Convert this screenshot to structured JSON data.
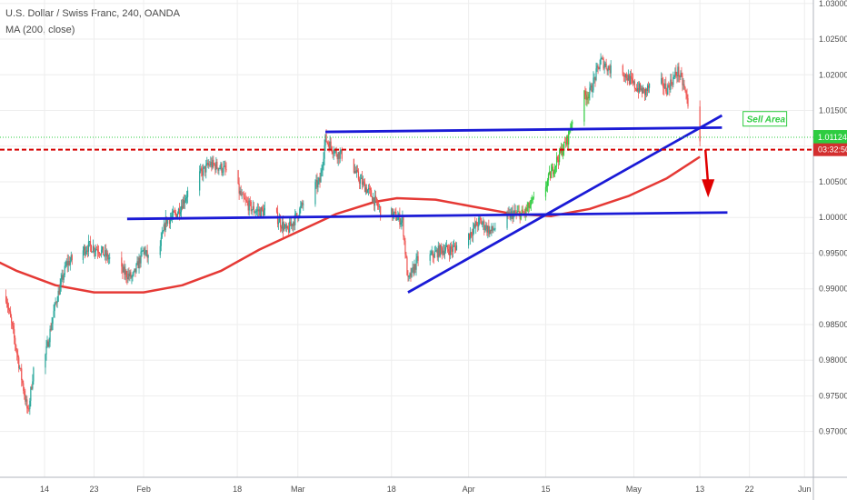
{
  "legend": {
    "title": "U.S. Dollar / Swiss Franc, 240, OANDA",
    "indicator": "MA (200, close)"
  },
  "price_tag": {
    "value": "1.01124",
    "countdown": "03:32:50"
  },
  "colors": {
    "up": "#26a69a",
    "up_bright": "#2ecc40",
    "down": "#ef5350",
    "ma": "#e53935",
    "trendline": "#1a1ad6",
    "price_line": "#2ecc40",
    "level_line": "#d50000",
    "arrow": "#e00000",
    "grid": "#eeeeee",
    "axis_text": "#4a4a4a",
    "countdown_bg": "#d32f2f"
  },
  "chart_data": {
    "type": "candlestick",
    "symbol": "USD/CHF",
    "timeframe": "240",
    "x_ticks": [
      "14",
      "23",
      "Feb",
      "18",
      "Mar",
      "18",
      "Apr",
      "15",
      "May",
      "13",
      "22",
      "Jun"
    ],
    "y_ticks": [
      "1.03000",
      "1.02500",
      "1.02000",
      "1.01500",
      "1.01000",
      "1.00500",
      "1.00000",
      "0.99500",
      "0.99000",
      "0.98500",
      "0.98000",
      "0.97500",
      "0.97000"
    ],
    "ylim": [
      0.9655,
      1.0301
    ],
    "price_path": [
      [
        "Jan 07",
        0.989
      ],
      [
        "Jan 09",
        0.981
      ],
      [
        "Jan 11",
        0.9725
      ],
      [
        "Jan 13",
        0.985
      ],
      [
        "Jan 14",
        0.98
      ],
      [
        "Jan 16",
        0.988
      ],
      [
        "Jan 18",
        0.9935
      ],
      [
        "Jan 22",
        0.996
      ],
      [
        "Jan 24",
        0.9955
      ],
      [
        "Jan 26",
        0.994
      ],
      [
        "Jan 28",
        0.9925
      ],
      [
        "Jan 30",
        0.9915
      ],
      [
        "Feb 01",
        0.9955
      ],
      [
        "Feb 03",
        0.9925
      ],
      [
        "Feb 05",
        0.9995
      ],
      [
        "Feb 07",
        1.0005
      ],
      [
        "Feb 10",
        1.005
      ],
      [
        "Feb 13",
        1.0075
      ],
      [
        "Feb 15",
        1.007
      ],
      [
        "Feb 17",
        1.006
      ],
      [
        "Feb 19",
        1.0025
      ],
      [
        "Feb 21",
        1.001
      ],
      [
        "Feb 23",
        1.0008
      ],
      [
        "Feb 25",
        1.0002
      ],
      [
        "Feb 27",
        0.998
      ],
      [
        "Mar 01",
        1.0005
      ],
      [
        "Mar 03",
        1.0035
      ],
      [
        "Mar 05",
        1.005
      ],
      [
        "Mar 06",
        1.011
      ],
      [
        "Mar 08",
        1.009
      ],
      [
        "Mar 10",
        1.0085
      ],
      [
        "Mar 12",
        1.0055
      ],
      [
        "Mar 14",
        1.0035
      ],
      [
        "Mar 16",
        1.001
      ],
      [
        "Mar 18",
        1.0005
      ],
      [
        "Mar 20",
        0.9995
      ],
      [
        "Mar 21",
        0.991
      ],
      [
        "Mar 23",
        0.9945
      ],
      [
        "Mar 25",
        0.9945
      ],
      [
        "Mar 27",
        0.9955
      ],
      [
        "Mar 29",
        0.9955
      ],
      [
        "Apr 01",
        0.9975
      ],
      [
        "Apr 03",
        0.9995
      ],
      [
        "Apr 05",
        0.998
      ],
      [
        "Apr 07",
        0.9995
      ],
      [
        "Apr 09",
        1.0005
      ],
      [
        "Apr 11",
        1.0005
      ],
      [
        "Apr 13",
        1.0025
      ],
      [
        "Apr 15",
        1.0045
      ],
      [
        "Apr 17",
        1.008
      ],
      [
        "Apr 19",
        1.011
      ],
      [
        "Apr 20",
        1.0145
      ],
      [
        "Apr 21",
        1.0165
      ],
      [
        "Apr 23",
        1.0175
      ],
      [
        "Apr 25",
        1.022
      ],
      [
        "Apr 27",
        1.0205
      ],
      [
        "Apr 29",
        1.0205
      ],
      [
        "May 01",
        1.0185
      ],
      [
        "May 03",
        1.0175
      ],
      [
        "May 05",
        1.0195
      ],
      [
        "May 07",
        1.018
      ],
      [
        "May 09",
        1.0205
      ],
      [
        "May 10",
        1.0185
      ],
      [
        "May 11",
        1.0155
      ],
      [
        "May 12",
        1.0125
      ],
      [
        "May 13",
        1.0112
      ]
    ],
    "moving_average": {
      "name": "MA (200, close)",
      "points": [
        [
          "Jan 01",
          0.9955
        ],
        [
          "Jan 09",
          0.9925
        ],
        [
          "Jan 16",
          0.9905
        ],
        [
          "Jan 23",
          0.9895
        ],
        [
          "Feb 01",
          0.9895
        ],
        [
          "Feb 08",
          0.9905
        ],
        [
          "Feb 15",
          0.9925
        ],
        [
          "Feb 22",
          0.9955
        ],
        [
          "Mar 01",
          0.998
        ],
        [
          "Mar 08",
          1.0005
        ],
        [
          "Mar 15",
          1.0022
        ],
        [
          "Mar 19",
          1.0027
        ],
        [
          "Mar 26",
          1.0025
        ],
        [
          "Apr 02",
          1.0015
        ],
        [
          "Apr 09",
          1.0005
        ],
        [
          "Apr 16",
          1.0002
        ],
        [
          "Apr 23",
          1.0012
        ],
        [
          "Apr 30",
          1.003
        ],
        [
          "May 07",
          1.0055
        ],
        [
          "May 13",
          1.0085
        ]
      ]
    },
    "trendlines": [
      {
        "from": [
          "Jan 29",
          0.9998
        ],
        "to": [
          "May 18",
          1.0007
        ]
      },
      {
        "from": [
          "Mar 06",
          1.012
        ],
        "to": [
          "May 17",
          1.0126
        ]
      },
      {
        "from": [
          "Mar 21",
          0.9895
        ],
        "to": [
          "May 17",
          1.0143
        ]
      }
    ],
    "horizontal_levels": [
      {
        "kind": "current_price",
        "value": 1.01124
      },
      {
        "kind": "level",
        "value": 1.0095
      }
    ],
    "forecast_arrow": {
      "from": [
        "May 14",
        1.0095
      ],
      "to": [
        "May 14",
        1.0028
      ]
    },
    "annotations": [
      {
        "text": "Sell Area",
        "at": [
          "May 21",
          1.0137
        ]
      }
    ]
  }
}
